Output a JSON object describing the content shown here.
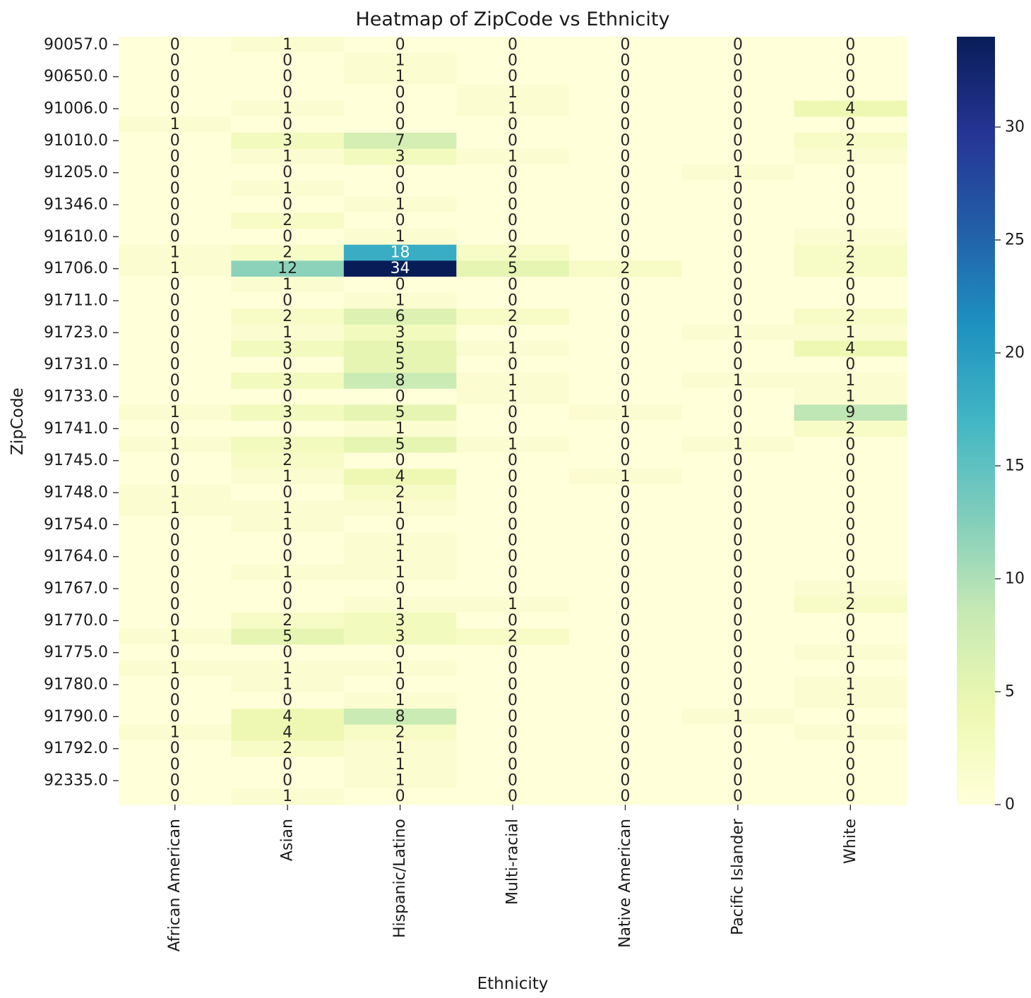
{
  "chart_data": {
    "type": "heatmap",
    "title": "Heatmap of ZipCode vs Ethnicity",
    "xlabel": "Ethnicity",
    "ylabel": "ZipCode",
    "columns": [
      "African American",
      "Asian",
      "Hispanic/Latino",
      "Multi-racial",
      "Native American",
      "Pacific Islander",
      "White"
    ],
    "row_tick_labels": [
      {
        "row": 0,
        "label": "90057.0"
      },
      {
        "row": 2,
        "label": "90650.0"
      },
      {
        "row": 4,
        "label": "91006.0"
      },
      {
        "row": 6,
        "label": "91010.0"
      },
      {
        "row": 8,
        "label": "91205.0"
      },
      {
        "row": 10,
        "label": "91346.0"
      },
      {
        "row": 12,
        "label": "91610.0"
      },
      {
        "row": 14,
        "label": "91706.0"
      },
      {
        "row": 16,
        "label": "91711.0"
      },
      {
        "row": 18,
        "label": "91723.0"
      },
      {
        "row": 20,
        "label": "91731.0"
      },
      {
        "row": 22,
        "label": "91733.0"
      },
      {
        "row": 24,
        "label": "91741.0"
      },
      {
        "row": 26,
        "label": "91745.0"
      },
      {
        "row": 28,
        "label": "91748.0"
      },
      {
        "row": 30,
        "label": "91754.0"
      },
      {
        "row": 32,
        "label": "91764.0"
      },
      {
        "row": 34,
        "label": "91767.0"
      },
      {
        "row": 36,
        "label": "91770.0"
      },
      {
        "row": 38,
        "label": "91775.0"
      },
      {
        "row": 40,
        "label": "91780.0"
      },
      {
        "row": 42,
        "label": "91790.0"
      },
      {
        "row": 44,
        "label": "91792.0"
      },
      {
        "row": 46,
        "label": "92335.0"
      }
    ],
    "values": [
      [
        0,
        1,
        0,
        0,
        0,
        0,
        0
      ],
      [
        0,
        0,
        1,
        0,
        0,
        0,
        0
      ],
      [
        0,
        0,
        1,
        0,
        0,
        0,
        0
      ],
      [
        0,
        0,
        0,
        1,
        0,
        0,
        0
      ],
      [
        0,
        1,
        0,
        1,
        0,
        0,
        4
      ],
      [
        1,
        0,
        0,
        0,
        0,
        0,
        0
      ],
      [
        0,
        3,
        7,
        0,
        0,
        0,
        2
      ],
      [
        0,
        1,
        3,
        1,
        0,
        0,
        1
      ],
      [
        0,
        0,
        0,
        0,
        0,
        1,
        0
      ],
      [
        0,
        1,
        0,
        0,
        0,
        0,
        0
      ],
      [
        0,
        0,
        1,
        0,
        0,
        0,
        0
      ],
      [
        0,
        2,
        0,
        0,
        0,
        0,
        0
      ],
      [
        0,
        0,
        1,
        0,
        0,
        0,
        1
      ],
      [
        1,
        2,
        18,
        2,
        0,
        0,
        2
      ],
      [
        1,
        12,
        34,
        5,
        2,
        0,
        2
      ],
      [
        0,
        1,
        0,
        0,
        0,
        0,
        0
      ],
      [
        0,
        0,
        1,
        0,
        0,
        0,
        0
      ],
      [
        0,
        2,
        6,
        2,
        0,
        0,
        2
      ],
      [
        0,
        1,
        3,
        0,
        0,
        1,
        1
      ],
      [
        0,
        3,
        5,
        1,
        0,
        0,
        4
      ],
      [
        0,
        0,
        5,
        0,
        0,
        0,
        0
      ],
      [
        0,
        3,
        8,
        1,
        0,
        1,
        1
      ],
      [
        0,
        0,
        0,
        1,
        0,
        0,
        1
      ],
      [
        1,
        3,
        5,
        0,
        1,
        0,
        9
      ],
      [
        0,
        0,
        1,
        0,
        0,
        0,
        2
      ],
      [
        1,
        3,
        5,
        1,
        0,
        1,
        0
      ],
      [
        0,
        2,
        0,
        0,
        0,
        0,
        0
      ],
      [
        0,
        1,
        4,
        0,
        1,
        0,
        0
      ],
      [
        1,
        0,
        2,
        0,
        0,
        0,
        0
      ],
      [
        1,
        1,
        1,
        0,
        0,
        0,
        0
      ],
      [
        0,
        1,
        0,
        0,
        0,
        0,
        0
      ],
      [
        0,
        0,
        1,
        0,
        0,
        0,
        0
      ],
      [
        0,
        0,
        1,
        0,
        0,
        0,
        0
      ],
      [
        0,
        1,
        1,
        0,
        0,
        0,
        0
      ],
      [
        0,
        0,
        0,
        0,
        0,
        0,
        1
      ],
      [
        0,
        0,
        1,
        1,
        0,
        0,
        2
      ],
      [
        0,
        2,
        3,
        0,
        0,
        0,
        0
      ],
      [
        1,
        5,
        3,
        2,
        0,
        0,
        0
      ],
      [
        0,
        0,
        0,
        0,
        0,
        0,
        1
      ],
      [
        1,
        1,
        1,
        0,
        0,
        0,
        0
      ],
      [
        0,
        1,
        0,
        0,
        0,
        0,
        1
      ],
      [
        0,
        0,
        1,
        0,
        0,
        0,
        1
      ],
      [
        0,
        4,
        8,
        0,
        0,
        1,
        0
      ],
      [
        1,
        4,
        2,
        0,
        0,
        0,
        1
      ],
      [
        0,
        2,
        1,
        0,
        0,
        0,
        0
      ],
      [
        0,
        0,
        1,
        0,
        0,
        0,
        0
      ],
      [
        0,
        0,
        1,
        0,
        0,
        0,
        0
      ],
      [
        0,
        1,
        0,
        0,
        0,
        0,
        0
      ]
    ],
    "vmin": 0,
    "vmax": 34,
    "colormap": "YlGnBu",
    "colorbar_ticks": [
      0,
      5,
      10,
      15,
      20,
      25,
      30
    ],
    "annotations": true,
    "grid": false,
    "legend": "colorbar-right"
  }
}
